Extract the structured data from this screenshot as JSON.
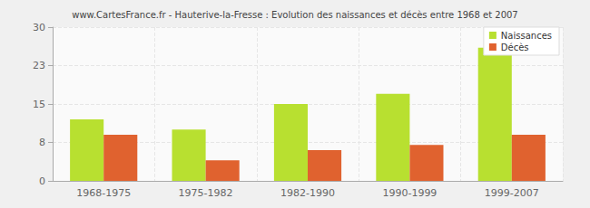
{
  "chart_data": {
    "type": "bar",
    "title": "www.CartesFrance.fr - Hauterive-la-Fresse : Evolution des naissances et décès entre 1968 et 2007",
    "categories": [
      "1968-1975",
      "1975-1982",
      "1982-1990",
      "1990-1999",
      "1999-2007"
    ],
    "series": [
      {
        "name": "Naissances",
        "color": "#b8e030",
        "values": [
          12,
          10,
          15,
          17,
          26
        ]
      },
      {
        "name": "Décès",
        "color": "#e0622f",
        "values": [
          9,
          4,
          6,
          7,
          9
        ]
      }
    ],
    "ylim": [
      0,
      30
    ],
    "yticks": [
      0,
      {
        "value": 7.5,
        "label": "8"
      },
      15,
      {
        "value": 22.5,
        "label": "23"
      },
      30
    ],
    "grid": true,
    "legend": "top-right"
  }
}
